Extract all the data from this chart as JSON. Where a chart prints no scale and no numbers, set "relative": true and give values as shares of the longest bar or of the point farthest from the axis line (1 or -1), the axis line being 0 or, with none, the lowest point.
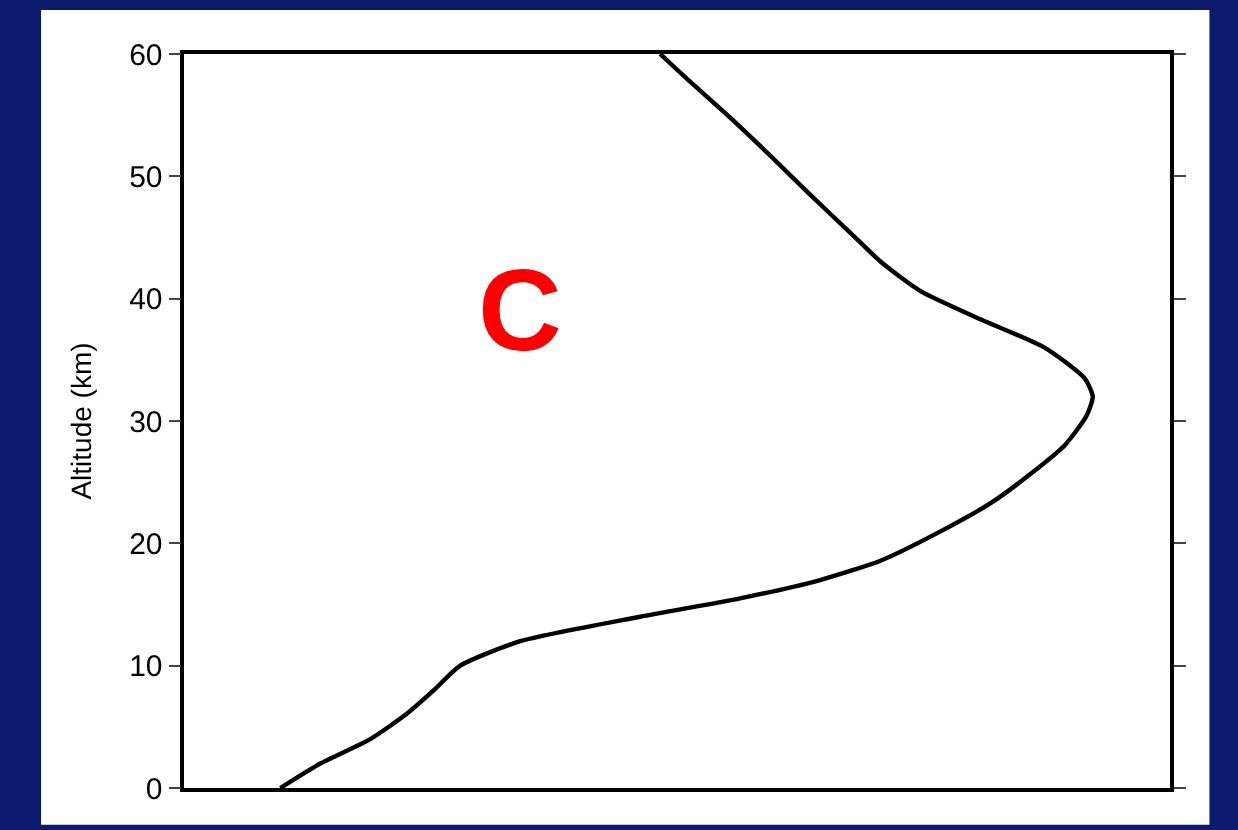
{
  "chart_data": {
    "type": "line",
    "relative": true,
    "orientation": "horizontal",
    "ylabel": "Altitude (km)",
    "annotations": [
      "C"
    ],
    "x": [
      0,
      2,
      4,
      6,
      8,
      10,
      12,
      14,
      15.5,
      17,
      18.6,
      21,
      23.3,
      25.7,
      28,
      30.4,
      32,
      33.5,
      36,
      38.3,
      40.6,
      43,
      45.4,
      48.5,
      51.7,
      54.8,
      58,
      60
    ],
    "series": [
      {
        "color": "#000000",
        "values": [
          0.106,
          0.15,
          0.205,
          0.244,
          0.275,
          0.304,
          0.37,
          0.502,
          0.612,
          0.7,
          0.767,
          0.833,
          0.888,
          0.932,
          0.969,
          0.993,
          1,
          0.991,
          0.947,
          0.877,
          0.811,
          0.767,
          0.733,
          0.689,
          0.645,
          0.601,
          0.553,
          0.524
        ]
      }
    ],
    "ylim": [
      0,
      60
    ],
    "yticks": [
      0,
      10,
      20,
      30,
      40,
      50,
      60
    ],
    "marker": "none",
    "line_style": "solid"
  }
}
